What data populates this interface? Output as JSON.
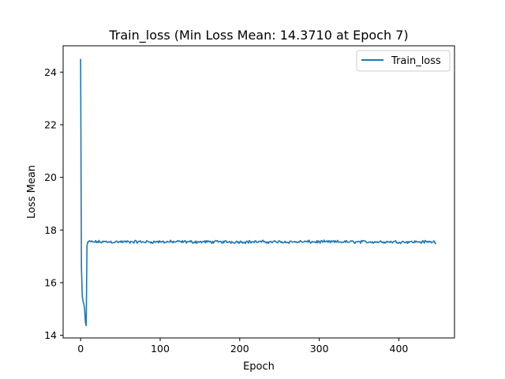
{
  "chart_data": {
    "type": "line",
    "title": "Train_loss (Min Loss Mean: 14.3710 at Epoch 7)",
    "xlabel": "Epoch",
    "ylabel": "Loss Mean",
    "xlim": [
      -22,
      470
    ],
    "ylim": [
      13.9,
      25.0
    ],
    "xticks": [
      0,
      100,
      200,
      300,
      400
    ],
    "yticks": [
      14,
      16,
      18,
      20,
      22,
      24
    ],
    "legend": {
      "position": "top-right",
      "entries": [
        "Train_loss"
      ]
    },
    "grid": false,
    "series": [
      {
        "name": "Train_loss",
        "color": "#1f77b4",
        "initial_points": [
          [
            0,
            24.5
          ],
          [
            1,
            16.6
          ],
          [
            2,
            15.5
          ],
          [
            3,
            15.3
          ],
          [
            4,
            15.2
          ],
          [
            5,
            15.0
          ],
          [
            6,
            14.5
          ],
          [
            7,
            14.371
          ],
          [
            8,
            17.4
          ],
          [
            9,
            17.55
          ]
        ],
        "plateau": {
          "start_epoch": 10,
          "end_epoch": 447,
          "mean": 17.55,
          "amplitude": 0.05
        }
      }
    ]
  }
}
